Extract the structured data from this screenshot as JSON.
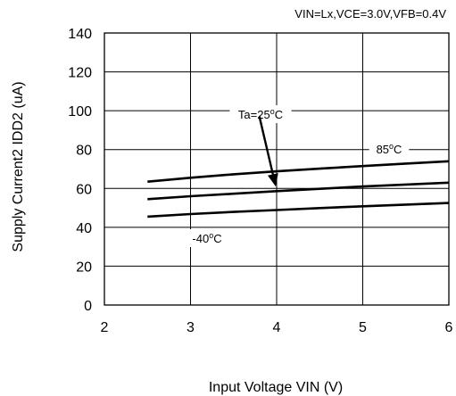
{
  "chart_data": {
    "type": "line",
    "title": "",
    "conditions": "VIN=Lx,VCE=3.0V,VFB=0.4V",
    "xlabel": "Input Voltage  VIN  (V)",
    "ylabel": "Supply Current2  IDD2 (uA)",
    "xlim": [
      2,
      6
    ],
    "ylim": [
      0,
      140
    ],
    "xticks": [
      2,
      3,
      4,
      5,
      6
    ],
    "yticks": [
      0,
      20,
      40,
      60,
      80,
      100,
      120,
      140
    ],
    "xtick_labels": [
      "2",
      "3",
      "4",
      "5",
      "6"
    ],
    "ytick_labels": [
      "0",
      "20",
      "40",
      "60",
      "80",
      "100",
      "120",
      "140"
    ],
    "grid": true,
    "legend": "none",
    "series": [
      {
        "name": "85°C",
        "label_main": "85",
        "label_sup": "o",
        "label_tail": "C",
        "x": [
          2.5,
          3,
          3.5,
          4,
          4.5,
          5,
          5.5,
          6
        ],
        "y": [
          63.5,
          65.5,
          67.3,
          68.8,
          70.2,
          71.5,
          72.8,
          74
        ]
      },
      {
        "name": "Ta=25°C",
        "label_main": "Ta=25",
        "label_sup": "o",
        "label_tail": "C",
        "x": [
          2.5,
          3,
          3.5,
          4,
          4.5,
          5,
          5.5,
          6
        ],
        "y": [
          54.5,
          56,
          57.3,
          58.6,
          59.8,
          61,
          62,
          63
        ]
      },
      {
        "name": "-40°C",
        "label_main": "-40",
        "label_sup": "o",
        "label_tail": "C",
        "x": [
          2.5,
          3,
          3.5,
          4,
          4.5,
          5,
          5.5,
          6
        ],
        "y": [
          45.5,
          46.8,
          47.9,
          48.9,
          49.9,
          50.8,
          51.7,
          52.5
        ]
      }
    ],
    "annotations": [
      {
        "type": "arrow",
        "from": [
          3.8,
          97
        ],
        "to": [
          3.99,
          61
        ]
      }
    ],
    "colors": {
      "line": "#000000",
      "grid": "#000000",
      "background": "#ffffff"
    }
  }
}
